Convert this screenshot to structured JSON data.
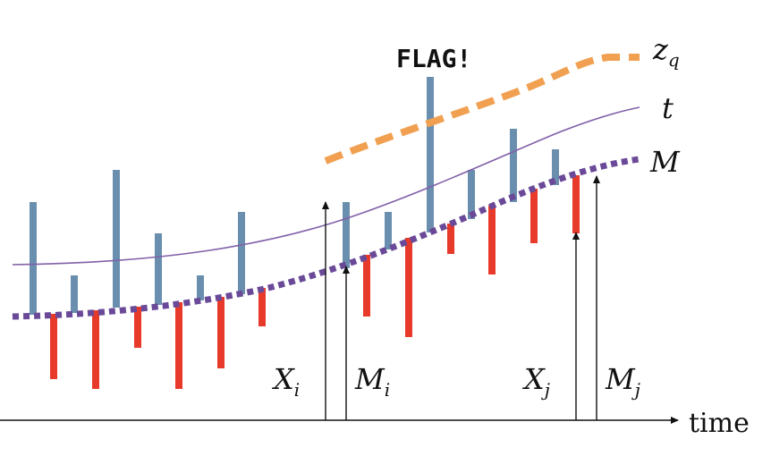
{
  "labels": {
    "flag": "FLAG!",
    "zq_main": "z",
    "zq_sub": "q",
    "t": "t",
    "m": "M",
    "time": "time",
    "xi_main": "X",
    "xi_sub": "i",
    "mi_main": "M",
    "mi_sub": "i",
    "xj_main": "X",
    "xj_sub": "j",
    "mj_main": "M",
    "mj_sub": "j"
  },
  "colors": {
    "up_bar": "#6a8fae",
    "down_bar": "#e83a2a",
    "zq_curve": "#f0a050",
    "t_curve": "#8060a8",
    "m_curve": "#6a4a98",
    "axis": "#111111"
  }
}
